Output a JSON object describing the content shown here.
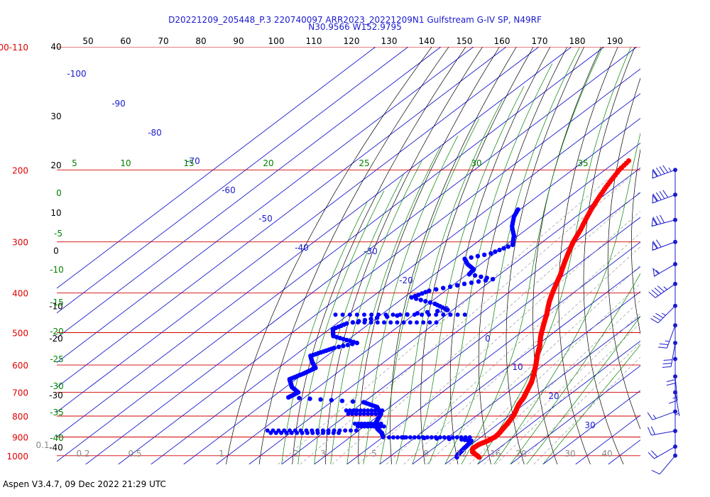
{
  "chart_data": {
    "type": "skew-t log-p sounding",
    "title": "D20221209_205448_P.3 220740097 ARR2023_20221209N1 Gulfstream G-IV SP, N49RF",
    "subtitle": "N30.9566 W152.9795",
    "footer": "Aspen V3.4.7, 09 Dec 2022  21:29 UTC",
    "pressure_levels": [
      {
        "p": 100,
        "label": "100-110"
      },
      {
        "p": 200,
        "label": "200"
      },
      {
        "p": 300,
        "label": "300"
      },
      {
        "p": 400,
        "label": "400"
      },
      {
        "p": 500,
        "label": "500"
      },
      {
        "p": 600,
        "label": "600"
      },
      {
        "p": 700,
        "label": "700"
      },
      {
        "p": 800,
        "label": "800"
      },
      {
        "p": 900,
        "label": "900"
      },
      {
        "p": 1000,
        "label": "1000"
      }
    ],
    "top_scale_labels": [
      "50",
      "60",
      "70",
      "80",
      "90",
      "100",
      "110",
      "120",
      "130",
      "140",
      "150",
      "160",
      "170",
      "180",
      "190"
    ],
    "height_labels": [
      {
        "p": 100,
        "label": "40"
      },
      {
        "p": 148,
        "label": "30"
      },
      {
        "p": 195,
        "label": "20"
      },
      {
        "p": 255,
        "label": "10"
      },
      {
        "p": 316,
        "label": "0"
      },
      {
        "p": 431,
        "label": "-10"
      },
      {
        "p": 517,
        "label": "-20"
      },
      {
        "p": 713,
        "label": "-30"
      },
      {
        "p": 956,
        "label": "-40"
      }
    ],
    "isotherm_labels": [
      "-100",
      "-90",
      "-80",
      "-70",
      "-60",
      "-50",
      "-40",
      "-30",
      "-20",
      "-10",
      "0",
      "10",
      "20",
      "30"
    ],
    "dry_adiabat_labels": [
      "5",
      "10",
      "15",
      "20",
      "25",
      "30",
      "35",
      "0",
      "-5",
      "-10",
      "-15",
      "-20",
      "-25",
      "-30",
      "-35",
      "-40"
    ],
    "mixing_ratio_labels": [
      "0.1",
      "0.2",
      "0.5",
      "1",
      "2",
      "3",
      "5",
      "8",
      "12",
      "16",
      "20",
      "30",
      "40"
    ],
    "temperature": {
      "color": "#ff0000",
      "points": [
        [
          190,
          -56.4
        ],
        [
          200,
          -55.6
        ],
        [
          220,
          -52.8
        ],
        [
          250,
          -48.2
        ],
        [
          280,
          -43.3
        ],
        [
          300,
          -40.6
        ],
        [
          330,
          -36.0
        ],
        [
          360,
          -31.4
        ],
        [
          390,
          -27.6
        ],
        [
          420,
          -23.8
        ],
        [
          450,
          -19.6
        ],
        [
          480,
          -16.0
        ],
        [
          510,
          -12.5
        ],
        [
          540,
          -8.7
        ],
        [
          570,
          -5.6
        ],
        [
          600,
          -2.3
        ],
        [
          630,
          0.6
        ],
        [
          660,
          3.2
        ],
        [
          690,
          5.2
        ],
        [
          720,
          7.1
        ],
        [
          750,
          8.4
        ],
        [
          780,
          10.3
        ],
        [
          800,
          11.4
        ],
        [
          830,
          12.5
        ],
        [
          860,
          13.4
        ],
        [
          880,
          14.0
        ],
        [
          900,
          14.3
        ],
        [
          920,
          13.6
        ],
        [
          940,
          12.3
        ],
        [
          960,
          12.1
        ],
        [
          980,
          13.5
        ],
        [
          1000,
          16.4
        ],
        [
          1012,
          18.0
        ]
      ]
    },
    "dewpoint": {
      "color": "#0000ff",
      "points": [
        [
          250,
          -70.6
        ],
        [
          260,
          -69.0
        ],
        [
          275,
          -65.6
        ],
        [
          290,
          -61.2
        ],
        [
          305,
          -58.0
        ],
        [
          320,
          -61.2
        ],
        [
          330,
          -67.0
        ],
        [
          340,
          -64.0
        ],
        [
          350,
          -60.0
        ],
        [
          360,
          -59.4
        ],
        [
          370,
          -50.2
        ],
        [
          380,
          -57.0
        ],
        [
          395,
          -65.0
        ],
        [
          410,
          -67.7
        ],
        [
          425,
          -58.0
        ],
        [
          440,
          -51.6
        ],
        [
          460,
          -70.0
        ],
        [
          475,
          -77.0
        ],
        [
          490,
          -79.0
        ],
        [
          510,
          -76.0
        ],
        [
          530,
          -66.0
        ],
        [
          545,
          -71.0
        ],
        [
          570,
          -75.0
        ],
        [
          590,
          -72.0
        ],
        [
          610,
          -68.6
        ],
        [
          630,
          -70.0
        ],
        [
          650,
          -72.0
        ],
        [
          680,
          -68.0
        ],
        [
          700,
          -64.0
        ],
        [
          720,
          -65.0
        ],
        [
          740,
          -40.0
        ],
        [
          760,
          -34.0
        ],
        [
          790,
          -30.0
        ],
        [
          830,
          -28.0
        ],
        [
          860,
          -25.0
        ],
        [
          880,
          -22.0
        ],
        [
          900,
          -20.0
        ],
        [
          905,
          -7.0
        ],
        [
          912,
          5.0
        ],
        [
          920,
          8.6
        ],
        [
          940,
          9.1
        ],
        [
          960,
          9.4
        ],
        [
          980,
          9.8
        ],
        [
          1000,
          10.2
        ],
        [
          1012,
          11.0
        ]
      ],
      "scatter_rows": [
        {
          "p": 452,
          "t0": -84,
          "t1": -44,
          "step": 2.2
        },
        {
          "p": 472,
          "t0": -74,
          "t1": -50,
          "step": 2.0
        },
        {
          "p": 775,
          "t0": -42,
          "t1": -30,
          "step": 1.1
        },
        {
          "p": 790,
          "t0": -40,
          "t1": -30,
          "step": 1.2
        },
        {
          "p": 835,
          "t0": -34,
          "t1": -26,
          "step": 1.0
        },
        {
          "p": 848,
          "t0": -32,
          "t1": -24,
          "step": 1.0
        },
        {
          "p": 868,
          "t0": -58,
          "t1": -30,
          "step": 1.7
        },
        {
          "p": 880,
          "t0": -56,
          "t1": -34,
          "step": 1.6
        },
        {
          "p": 902,
          "t0": -18,
          "t1": 8,
          "step": 1.3
        }
      ]
    },
    "wind_barbs": [
      {
        "p": 200,
        "dir": 250,
        "spd": 95
      },
      {
        "p": 230,
        "dir": 250,
        "spd": 90
      },
      {
        "p": 265,
        "dir": 255,
        "spd": 80
      },
      {
        "p": 300,
        "dir": 250,
        "spd": 70
      },
      {
        "p": 340,
        "dir": 240,
        "spd": 55
      },
      {
        "p": 380,
        "dir": 235,
        "spd": 45
      },
      {
        "p": 430,
        "dir": 225,
        "spd": 35
      },
      {
        "p": 480,
        "dir": 200,
        "spd": 25
      },
      {
        "p": 530,
        "dir": 190,
        "spd": 30
      },
      {
        "p": 580,
        "dir": 180,
        "spd": 20
      },
      {
        "p": 640,
        "dir": 175,
        "spd": 15
      },
      {
        "p": 700,
        "dir": 170,
        "spd": 5
      },
      {
        "p": 780,
        "dir": 250,
        "spd": 15
      },
      {
        "p": 870,
        "dir": 260,
        "spd": 20
      },
      {
        "p": 950,
        "dir": 240,
        "spd": 20
      },
      {
        "p": 1000,
        "dir": 220,
        "spd": 10
      }
    ],
    "colors": {
      "isobar": "#d00000",
      "isotherm": "#0000cc",
      "dry_adiabat": "#000000",
      "moist_adiabat": "#008000",
      "mixing_ratio": "#888888",
      "label_blue": "#1a1ad0",
      "label_green": "#008000",
      "label_red": "#e00000"
    }
  }
}
